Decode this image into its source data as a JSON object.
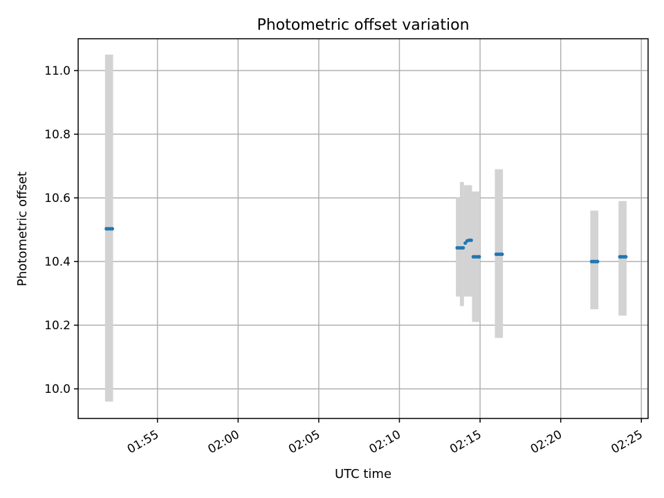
{
  "chart_data": {
    "type": "scatter",
    "title": "Photometric offset variation",
    "xlabel": "UTC time",
    "ylabel": "Photometric offset",
    "x_unit": "UTC time (HH:MM)",
    "xlim": [
      "01:50:05",
      "02:25:25"
    ],
    "ylim": [
      9.907,
      11.1
    ],
    "x_ticks": [
      "01:55",
      "02:00",
      "02:05",
      "02:10",
      "02:15",
      "02:20",
      "02:25"
    ],
    "y_ticks": [
      10.0,
      10.2,
      10.4,
      10.6,
      10.8,
      11.0
    ],
    "grid": true,
    "error_bars": [
      {
        "x_start": "01:51:45",
        "x_end": "01:52:15",
        "low": 9.96,
        "high": 11.05
      },
      {
        "x_start": "02:13:30",
        "x_end": "02:14:00",
        "low": 10.29,
        "high": 10.6
      },
      {
        "x_start": "02:13:45",
        "x_end": "02:14:00",
        "low": 10.26,
        "high": 10.65
      },
      {
        "x_start": "02:14:00",
        "x_end": "02:14:30",
        "low": 10.29,
        "high": 10.64
      },
      {
        "x_start": "02:14:30",
        "x_end": "02:15:00",
        "low": 10.21,
        "high": 10.62
      },
      {
        "x_start": "02:15:55",
        "x_end": "02:16:25",
        "low": 10.16,
        "high": 10.69
      },
      {
        "x_start": "02:21:50",
        "x_end": "02:22:20",
        "low": 10.25,
        "high": 10.56
      },
      {
        "x_start": "02:23:35",
        "x_end": "02:24:05",
        "low": 10.23,
        "high": 10.59
      }
    ],
    "series": [
      {
        "color": "#1f77b4",
        "points": [
          {
            "x": "01:51:50",
            "y": 10.503
          },
          {
            "x": "01:51:57",
            "y": 10.503
          },
          {
            "x": "01:52:05",
            "y": 10.503
          },
          {
            "x": "01:52:12",
            "y": 10.503
          },
          {
            "x": "02:13:35",
            "y": 10.443
          },
          {
            "x": "02:13:42",
            "y": 10.443
          },
          {
            "x": "02:13:50",
            "y": 10.443
          },
          {
            "x": "02:13:57",
            "y": 10.443
          },
          {
            "x": "02:14:05",
            "y": 10.458
          },
          {
            "x": "02:14:12",
            "y": 10.465
          },
          {
            "x": "02:14:20",
            "y": 10.467
          },
          {
            "x": "02:14:27",
            "y": 10.467
          },
          {
            "x": "02:14:35",
            "y": 10.415
          },
          {
            "x": "02:14:42",
            "y": 10.415
          },
          {
            "x": "02:14:50",
            "y": 10.415
          },
          {
            "x": "02:14:57",
            "y": 10.415
          },
          {
            "x": "02:16:00",
            "y": 10.423
          },
          {
            "x": "02:16:07",
            "y": 10.423
          },
          {
            "x": "02:16:15",
            "y": 10.423
          },
          {
            "x": "02:16:22",
            "y": 10.423
          },
          {
            "x": "02:21:55",
            "y": 10.4
          },
          {
            "x": "02:22:02",
            "y": 10.4
          },
          {
            "x": "02:22:10",
            "y": 10.4
          },
          {
            "x": "02:22:17",
            "y": 10.4
          },
          {
            "x": "02:23:40",
            "y": 10.415
          },
          {
            "x": "02:23:47",
            "y": 10.415
          },
          {
            "x": "02:23:55",
            "y": 10.415
          },
          {
            "x": "02:24:02",
            "y": 10.415
          }
        ]
      }
    ]
  }
}
